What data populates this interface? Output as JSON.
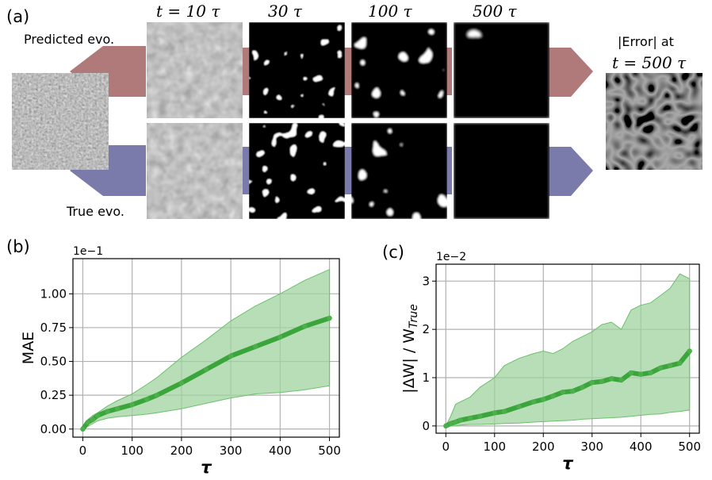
{
  "panel_a": {
    "label": "(a)",
    "predicted_label": "Predicted evo.",
    "true_label": "True evo.",
    "time_labels": [
      "t = 10 τ",
      "30 τ",
      "100 τ",
      "500 τ"
    ],
    "error_title_line1": "|Error| at",
    "error_title_line2": "t = 500 τ",
    "colors": {
      "predicted_arrow": "#b07a7a",
      "true_arrow": "#7b7bab",
      "initial_gray": "#7a7a7a"
    }
  },
  "chart_data": [
    {
      "type": "line",
      "panel_label": "(b)",
      "xlabel": "τ",
      "ylabel": "MAE",
      "y_multiplier": "1e−1",
      "xlim": [
        -20,
        520
      ],
      "ylim": [
        -0.06,
        1.26
      ],
      "xticks": [
        0,
        100,
        200,
        300,
        400,
        500
      ],
      "xtick_labels": [
        "0",
        "100",
        "200",
        "300",
        "400",
        "500"
      ],
      "yticks": [
        0.0,
        0.25,
        0.5,
        0.75,
        1.0
      ],
      "ytick_labels": [
        "0.00",
        "0.25",
        "0.50",
        "0.75",
        "1.00"
      ],
      "grid": true,
      "color": "#3aa53a",
      "band_color": "#9fd39f",
      "x": [
        0,
        10,
        20,
        30,
        50,
        70,
        100,
        130,
        150,
        200,
        250,
        300,
        350,
        400,
        450,
        500
      ],
      "mean": [
        0.0,
        0.05,
        0.07,
        0.1,
        0.13,
        0.15,
        0.18,
        0.22,
        0.25,
        0.34,
        0.44,
        0.54,
        0.61,
        0.68,
        0.76,
        0.82
      ],
      "upper": [
        0.0,
        0.07,
        0.1,
        0.12,
        0.17,
        0.21,
        0.26,
        0.33,
        0.38,
        0.53,
        0.66,
        0.8,
        0.91,
        1.0,
        1.1,
        1.18
      ],
      "lower": [
        0.0,
        0.02,
        0.04,
        0.06,
        0.08,
        0.09,
        0.1,
        0.11,
        0.12,
        0.15,
        0.19,
        0.23,
        0.26,
        0.27,
        0.29,
        0.32
      ]
    },
    {
      "type": "line",
      "panel_label": "(c)",
      "xlabel": "τ",
      "ylabel": "|ΔW| / W_True",
      "y_multiplier": "1e−2",
      "xlim": [
        -20,
        520
      ],
      "ylim": [
        -0.15,
        3.35
      ],
      "xticks": [
        0,
        100,
        200,
        300,
        400,
        500
      ],
      "xtick_labels": [
        "0",
        "100",
        "200",
        "300",
        "400",
        "500"
      ],
      "yticks": [
        0,
        1,
        2,
        3
      ],
      "ytick_labels": [
        "0",
        "1",
        "2",
        "3"
      ],
      "grid": true,
      "color": "#3aa53a",
      "band_color": "#9fd39f",
      "x": [
        0,
        10,
        20,
        30,
        50,
        70,
        100,
        120,
        150,
        180,
        200,
        220,
        240,
        260,
        280,
        300,
        320,
        340,
        360,
        380,
        400,
        420,
        440,
        460,
        480,
        500
      ],
      "mean": [
        0.0,
        0.05,
        0.08,
        0.12,
        0.16,
        0.2,
        0.27,
        0.3,
        0.4,
        0.5,
        0.55,
        0.62,
        0.7,
        0.72,
        0.8,
        0.9,
        0.92,
        0.98,
        0.95,
        1.1,
        1.07,
        1.1,
        1.2,
        1.25,
        1.3,
        1.55
      ],
      "upper": [
        0.0,
        0.2,
        0.45,
        0.5,
        0.6,
        0.8,
        1.0,
        1.25,
        1.4,
        1.5,
        1.55,
        1.5,
        1.6,
        1.75,
        1.85,
        1.95,
        2.1,
        2.15,
        2.0,
        2.4,
        2.5,
        2.55,
        2.7,
        2.85,
        3.15,
        3.05
      ],
      "lower": [
        0.0,
        0.0,
        0.0,
        0.02,
        0.03,
        0.03,
        0.04,
        0.05,
        0.06,
        0.08,
        0.09,
        0.1,
        0.11,
        0.12,
        0.14,
        0.15,
        0.16,
        0.17,
        0.18,
        0.2,
        0.22,
        0.24,
        0.25,
        0.28,
        0.3,
        0.33
      ]
    }
  ]
}
